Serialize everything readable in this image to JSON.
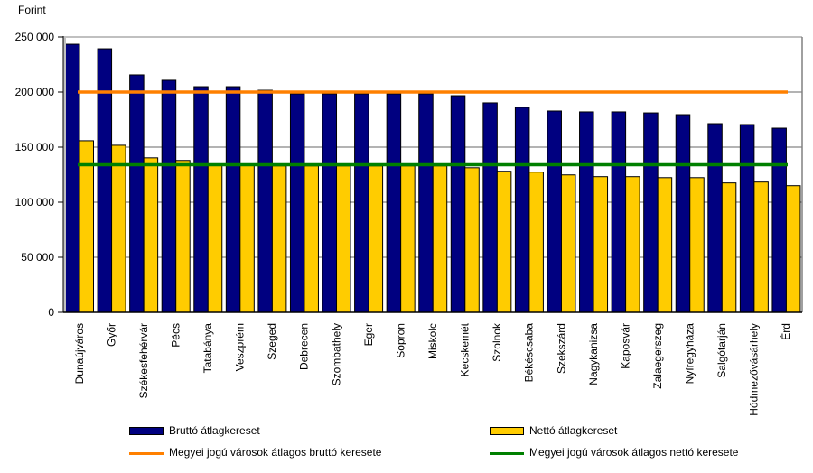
{
  "chart_data": {
    "type": "bar",
    "title": "",
    "ylabel": "Forint",
    "xlabel": "",
    "ylim": [
      0,
      250000
    ],
    "yticks": [
      0,
      50000,
      100000,
      150000,
      200000,
      250000
    ],
    "ytick_labels": [
      "0",
      "50 000",
      "100 000",
      "150 000",
      "200 000",
      "250 000"
    ],
    "grid": true,
    "categories": [
      "Dunaújváros",
      "Győr",
      "Székesfehérvár",
      "Pécs",
      "Tatabánya",
      "Veszprém",
      "Szeged",
      "Debrecen",
      "Szombathely",
      "Eger",
      "Sopron",
      "Miskolc",
      "Kecskemét",
      "Szolnok",
      "Békéscsaba",
      "Szekszárd",
      "Nagykanizsa",
      "Kaposvár",
      "Zalaegerszeg",
      "Nyíregyháza",
      "Salgótarján",
      "Hódmezővásárhely",
      "Érd"
    ],
    "series": [
      {
        "name": "Bruttó átlagkereset",
        "color": "#000080",
        "values": [
          243400,
          239300,
          215600,
          210700,
          204900,
          204900,
          201600,
          198400,
          198400,
          198400,
          198400,
          198400,
          196700,
          190200,
          186100,
          182800,
          182000,
          182000,
          181100,
          179500,
          171300,
          170500,
          167200
        ]
      },
      {
        "name": "Nettó átlagkereset",
        "color": "#FFCC00",
        "values": [
          155800,
          151700,
          140300,
          137900,
          134600,
          134600,
          133000,
          133000,
          133000,
          133000,
          133000,
          133000,
          131300,
          128100,
          127300,
          124800,
          123200,
          123200,
          122300,
          122300,
          117500,
          118300,
          115000
        ]
      }
    ],
    "reference_lines": [
      {
        "name": "Megyei jogú városok átlagos bruttó keresete",
        "value": 200000,
        "color": "#FF8000"
      },
      {
        "name": "Megyei jogú városok átlagos nettó keresete",
        "value": 134000,
        "color": "#008000"
      }
    ],
    "legend": {
      "placement": "bottom",
      "items": [
        {
          "label": "Bruttó átlagkereset",
          "kind": "bar",
          "color": "#000080"
        },
        {
          "label": "Nettó átlagkereset",
          "kind": "bar",
          "color": "#FFCC00"
        },
        {
          "label": "Megyei jogú városok átlagos bruttó keresete",
          "kind": "line",
          "color": "#FF8000"
        },
        {
          "label": "Megyei jogú városok átlagos nettó keresete",
          "kind": "line",
          "color": "#008000"
        }
      ]
    }
  }
}
